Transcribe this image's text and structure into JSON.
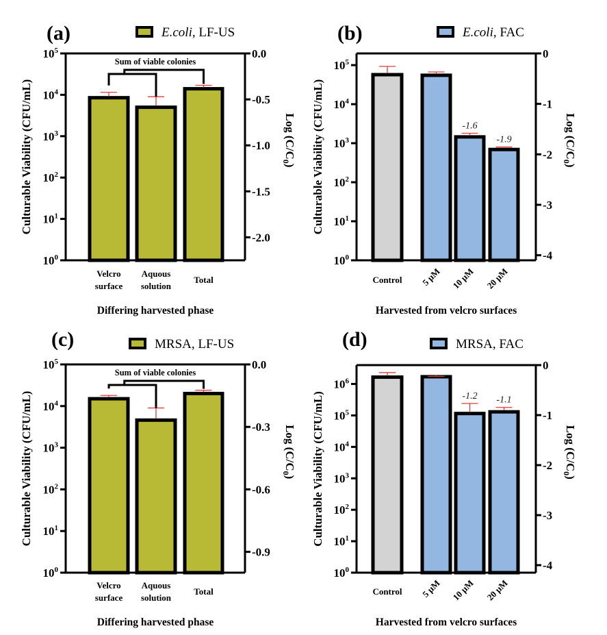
{
  "chart_data": [
    {
      "panel": "(a)",
      "type": "bar",
      "legend": {
        "label_italic": "E.coli",
        "label_rest": ", LF-US",
        "color": "#b8ba35",
        "placement": "top"
      },
      "categories": [
        "Velcro surface",
        "Aquous solution",
        "Total"
      ],
      "category_lines": [
        [
          "Velcro",
          "surface"
        ],
        [
          "Aquous",
          "solution"
        ],
        [
          "Total"
        ]
      ],
      "values": [
        8500,
        5000,
        14000
      ],
      "error_upper": [
        11500,
        9000,
        17000
      ],
      "bar_colors": [
        "#b8ba35",
        "#b8ba35",
        "#b8ba35"
      ],
      "yscale": "log",
      "ylim": [
        1,
        100000
      ],
      "yticks": [
        0,
        1,
        2,
        3,
        4,
        5
      ],
      "ylabel": "Culturable Viability  (CFU/mL)",
      "y2label": "Log (C/C0)",
      "y2lim": [
        -2.25,
        0.0
      ],
      "y2ticks": [
        "0.0",
        "-0.5",
        "-1.0",
        "-1.5",
        "-2.0"
      ],
      "y2tick_values": [
        0.0,
        -0.5,
        -1.0,
        -1.5,
        -2.0
      ],
      "xlabel": "Differing harvested phase",
      "bracket_label": "Sum of viable colonies",
      "annotations": [],
      "rotated_categories": false
    },
    {
      "panel": "(b)",
      "type": "bar",
      "legend": {
        "label_italic": "E.coli",
        "label_rest": ", FAC",
        "color": "#93b7e0",
        "placement": "top"
      },
      "categories": [
        "Control",
        "5 μM",
        "10 μM",
        "20 μM"
      ],
      "category_lines": [
        [
          "Control"
        ],
        [
          "5 μM"
        ],
        [
          "10 μM"
        ],
        [
          "20 μM"
        ]
      ],
      "values": [
        57000,
        55000,
        1450,
        690
      ],
      "error_upper": [
        93000,
        67000,
        1800,
        800
      ],
      "bar_colors": [
        "#d3d3d3",
        "#93b7e0",
        "#93b7e0",
        "#93b7e0"
      ],
      "yscale": "log",
      "ylim": [
        1,
        100000
      ],
      "ylim_top_extra": 0.3,
      "yticks": [
        0,
        1,
        2,
        3,
        4,
        5
      ],
      "ylabel": "Culturable Viability  (CFU/mL)",
      "y2label": "Log (C/C0)",
      "y2lim": [
        -4.1,
        0
      ],
      "y2ticks": [
        "0",
        "-1",
        "-2",
        "-3",
        "-4"
      ],
      "y2tick_values": [
        0,
        -1,
        -2,
        -3,
        -4
      ],
      "xlabel": "Harvested from velcro surfaces",
      "bracket_label": "",
      "annotations": [
        "",
        "",
        "-1.6",
        "-1.9"
      ],
      "rotated_categories": true
    },
    {
      "panel": "(c)",
      "type": "bar",
      "legend": {
        "label_italic": "",
        "label_rest": "MRSA, LF-US",
        "color": "#b8ba35",
        "placement": "top"
      },
      "categories": [
        "Velcro surface",
        "Aquous solution",
        "Total"
      ],
      "category_lines": [
        [
          "Velcro",
          "surface"
        ],
        [
          "Aquous",
          "solution"
        ],
        [
          "Total"
        ]
      ],
      "values": [
        15000,
        4600,
        20000
      ],
      "error_upper": [
        18000,
        9000,
        24000
      ],
      "bar_colors": [
        "#b8ba35",
        "#b8ba35",
        "#b8ba35"
      ],
      "yscale": "log",
      "ylim": [
        1,
        100000
      ],
      "yticks": [
        0,
        1,
        2,
        3,
        4,
        5
      ],
      "ylabel": "Culturable Viability  (CFU/mL)",
      "y2label": "Log (C/C0)",
      "y2lim": [
        -1.0,
        0.0
      ],
      "y2ticks": [
        "0.0",
        "-0.3",
        "-0.6",
        "-0.9"
      ],
      "y2tick_values": [
        0.0,
        -0.3,
        -0.6,
        -0.9
      ],
      "xlabel": "Differing harvested phase",
      "bracket_label": "Sum of viable colonies",
      "annotations": [],
      "rotated_categories": false
    },
    {
      "panel": "(d)",
      "type": "bar",
      "legend": {
        "label_italic": "",
        "label_rest": "MRSA, FAC",
        "color": "#93b7e0",
        "placement": "top"
      },
      "categories": [
        "Control",
        "5 μM",
        "10 μM",
        "20 μM"
      ],
      "category_lines": [
        [
          "Control"
        ],
        [
          "5 μM"
        ],
        [
          "10 μM"
        ],
        [
          "20 μM"
        ]
      ],
      "values": [
        1650000,
        1700000,
        115000,
        130000
      ],
      "error_upper": [
        2300000,
        1750000,
        240000,
        180000
      ],
      "bar_colors": [
        "#d3d3d3",
        "#93b7e0",
        "#93b7e0",
        "#93b7e0"
      ],
      "yscale": "log",
      "ylim": [
        1,
        1000000
      ],
      "ylim_top_extra": 0.6,
      "yticks": [
        0,
        1,
        2,
        3,
        4,
        5,
        6
      ],
      "ylabel": "Culturable Viability  (CFU/mL)",
      "y2label": "Log (C/C0)",
      "y2lim": [
        -4.15,
        0
      ],
      "y2ticks": [
        "0",
        "-1",
        "-2",
        "-3",
        "-4"
      ],
      "y2tick_values": [
        0,
        -1,
        -2,
        -3,
        -4
      ],
      "xlabel": "Harvested from velcro surfaces",
      "bracket_label": "",
      "annotations": [
        "",
        "",
        "-1.2",
        "-1.1"
      ],
      "rotated_categories": true
    }
  ]
}
